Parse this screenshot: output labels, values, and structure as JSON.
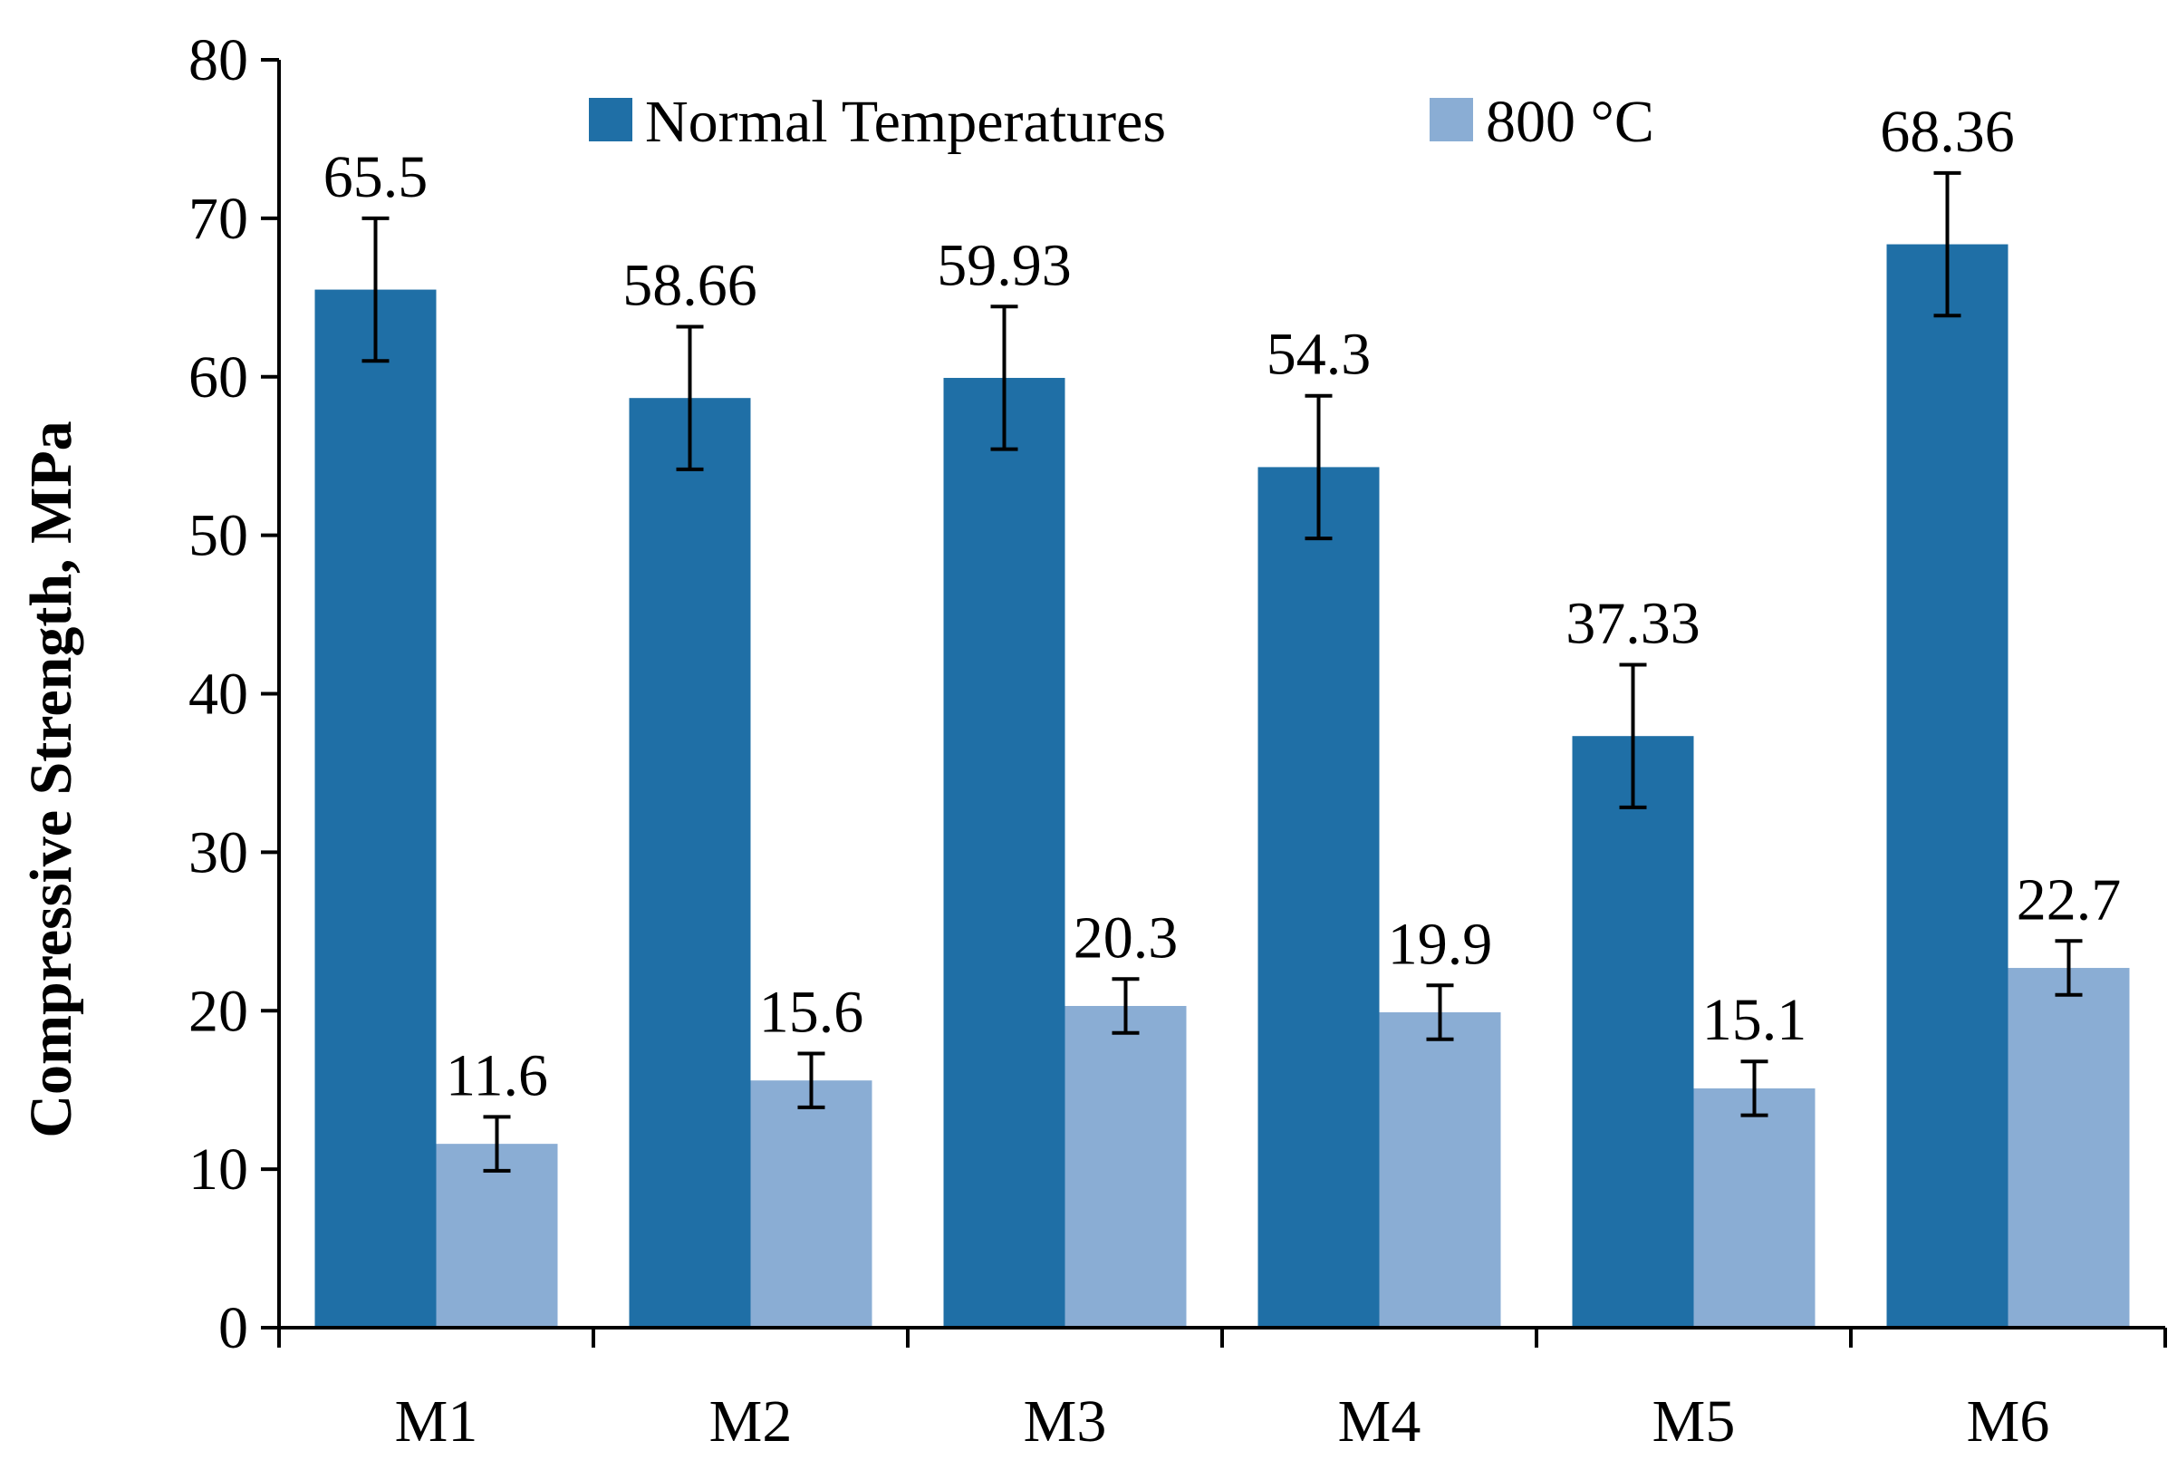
{
  "chart_data": {
    "type": "bar",
    "title": "",
    "xlabel": "",
    "ylabel": "Compressive Strength, MPa",
    "ylim": [
      0,
      80
    ],
    "yticks": [
      0,
      10,
      20,
      30,
      40,
      50,
      60,
      70,
      80
    ],
    "grid": false,
    "legend_position": "top",
    "categories": [
      "M1",
      "M2",
      "M3",
      "M4",
      "M5",
      "M6"
    ],
    "series": [
      {
        "name": "Normal Temperatures",
        "color": "#1f6fa6",
        "values": [
          65.5,
          58.66,
          59.93,
          54.3,
          37.33,
          68.36
        ],
        "labels": [
          "65.5",
          "58.66",
          "59.93",
          "54.3",
          "37.33",
          "68.36"
        ],
        "error": [
          4.5,
          4.5,
          4.5,
          4.5,
          4.5,
          4.5
        ]
      },
      {
        "name": "800 °C",
        "color": "#8aadd4",
        "values": [
          11.6,
          15.6,
          20.3,
          19.9,
          15.1,
          22.7
        ],
        "labels": [
          "11.6",
          "15.6",
          "20.3",
          "19.9",
          "15.1",
          "22.7"
        ],
        "error": [
          1.7,
          1.7,
          1.7,
          1.7,
          1.7,
          1.7
        ]
      }
    ]
  }
}
